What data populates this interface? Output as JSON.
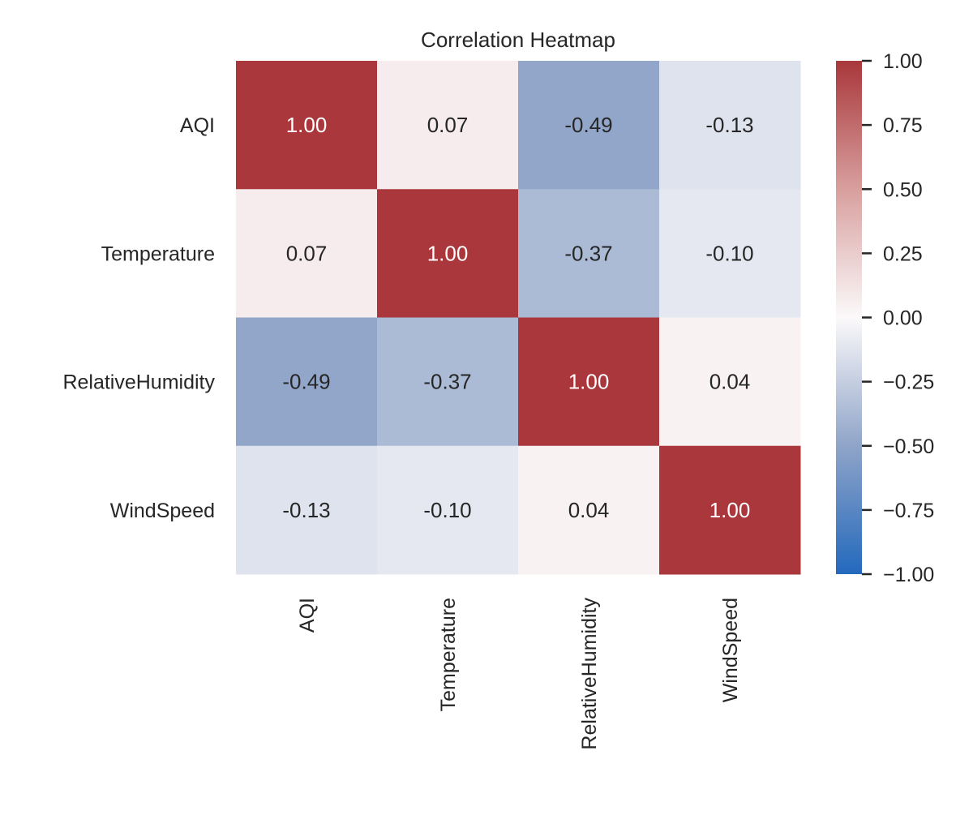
{
  "chart_data": {
    "type": "heatmap",
    "title": "Correlation Heatmap",
    "row_labels": [
      "AQI",
      "Temperature",
      "RelativeHumidity",
      "WindSpeed"
    ],
    "col_labels": [
      "AQI",
      "Temperature",
      "RelativeHumidity",
      "WindSpeed"
    ],
    "values": [
      [
        1.0,
        0.07,
        -0.49,
        -0.13
      ],
      [
        0.07,
        1.0,
        -0.37,
        -0.1
      ],
      [
        -0.49,
        -0.37,
        1.0,
        0.04
      ],
      [
        -0.13,
        -0.1,
        0.04,
        1.0
      ]
    ],
    "value_format_decimals": 2,
    "colorbar": {
      "vmin": -1.0,
      "vmax": 1.0,
      "ticks": [
        1.0,
        0.75,
        0.5,
        0.25,
        0.0,
        -0.25,
        -0.5,
        -0.75,
        -1.0
      ],
      "tick_labels": [
        "1.00",
        "0.75",
        "0.50",
        "0.25",
        "0.00",
        "−0.25",
        "−0.50",
        "−0.75",
        "−1.00"
      ]
    },
    "colormap": {
      "name": "vlag",
      "stops": [
        {
          "v": -1.0,
          "color": "#2369bd"
        },
        {
          "v": -0.5,
          "color": "#8fa4c8"
        },
        {
          "v": 0.0,
          "color": "#fbf9fa"
        },
        {
          "v": 0.5,
          "color": "#d89f9e"
        },
        {
          "v": 1.0,
          "color": "#a9373b"
        }
      ]
    },
    "annotation_colors": {
      "dark_text": "#262626",
      "light_text": "#ffffff"
    },
    "x_tick_rotation": "vertical",
    "grid": false
  }
}
